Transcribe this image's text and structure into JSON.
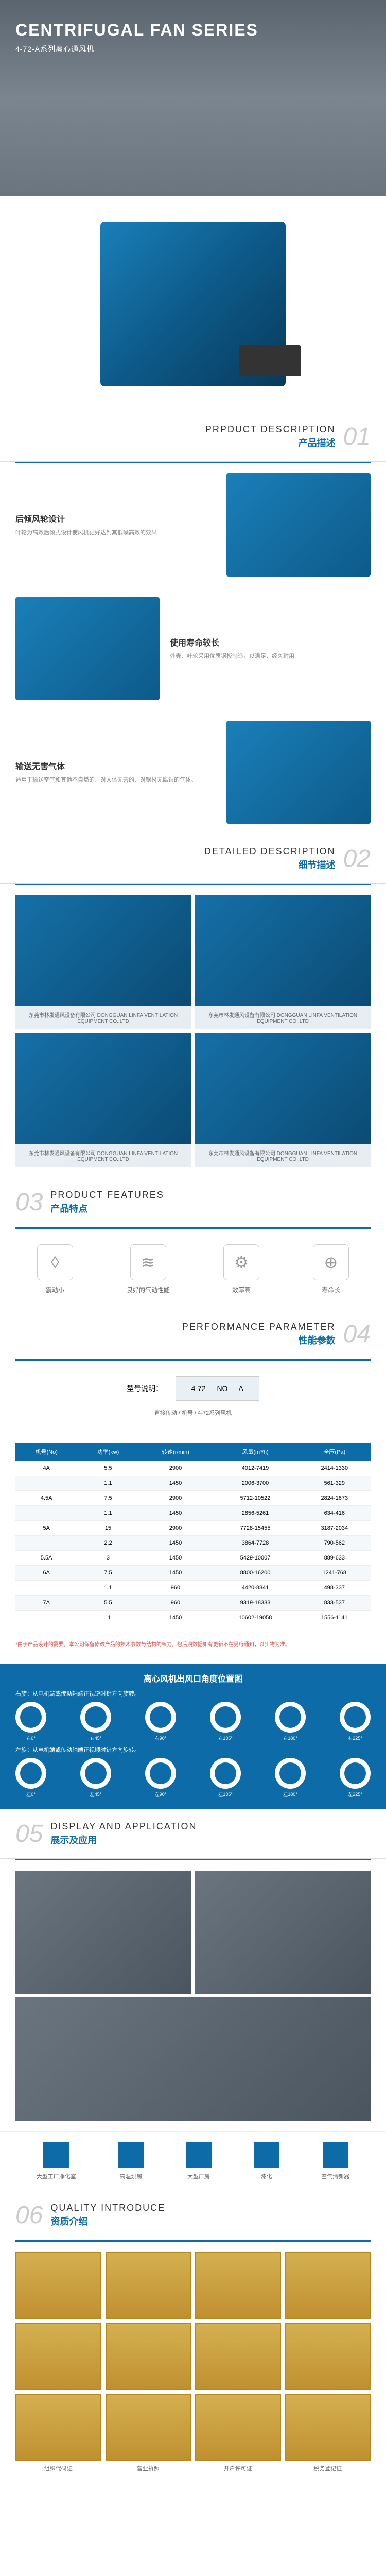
{
  "hero": {
    "title": "CENTRIFUGAL FAN SERIES",
    "subtitle": "4-72-A系列离心通风机"
  },
  "sections": {
    "s01": {
      "num": "01",
      "en": "PRPDUCT DESCRIPTION",
      "cn": "产品描述"
    },
    "s02": {
      "num": "02",
      "en": "DETAILED DESCRIPTION",
      "cn": "细节描述"
    },
    "s03": {
      "num": "03",
      "en": "PRODUCT FEATURES",
      "cn": "产品特点"
    },
    "s04": {
      "num": "04",
      "en": "PERFORMANCE PARAMETER",
      "cn": "性能参数"
    },
    "s05": {
      "num": "05",
      "en": "DISPLAY AND APPLICATION",
      "cn": "展示及应用"
    },
    "s06": {
      "num": "06",
      "en": "QUALITY INTRODUCE",
      "cn": "资质介绍"
    }
  },
  "descriptions": [
    {
      "title": "后倾风轮设计",
      "text": "叶轮为高效后倾式设计使风机更好达到其低噪高效的效果"
    },
    {
      "title": "使用寿命较长",
      "text": "外壳、叶轮采用优质钢板制造，以满足、经久耐用"
    },
    {
      "title": "输送无害气体",
      "text": "适用于输送空气和其他不自燃的、对人体无害的、对钢材无腐蚀的气体。"
    }
  ],
  "detail_watermark": "东莞市林发通风设备有限公司 DONGGUAN LINFA VENTILATION EQUIPMENT CO.,LTD",
  "features": [
    {
      "icon": "◊",
      "label": "震动小"
    },
    {
      "icon": "≋",
      "label": "良好的气动性能"
    },
    {
      "icon": "⚙",
      "label": "效率高"
    },
    {
      "icon": "⊕",
      "label": "寿命长"
    }
  ],
  "param_label": {
    "title": "型号说明：",
    "formula": "4-72 — NO — A",
    "notes": [
      "直接传动",
      "机号",
      "4-72系列风机"
    ]
  },
  "spec_headers": [
    "机号(No)",
    "功率(kw)",
    "转速(r/min)",
    "风量(m³/h)",
    "全压(Pa)"
  ],
  "spec_rows": [
    [
      "4A",
      "5.5",
      "2900",
      "4012-7419",
      "2414-1330"
    ],
    [
      "",
      "1.1",
      "1450",
      "2006-3700",
      "561-329"
    ],
    [
      "4.5A",
      "7.5",
      "2900",
      "5712-10522",
      "2824-1673"
    ],
    [
      "",
      "1.1",
      "1450",
      "2856-5261",
      "634-416"
    ],
    [
      "5A",
      "15",
      "2900",
      "7728-15455",
      "3187-2034"
    ],
    [
      "",
      "2.2",
      "1450",
      "3864-7728",
      "790-562"
    ],
    [
      "5.5A",
      "3",
      "1450",
      "5429-10007",
      "889-633"
    ],
    [
      "6A",
      "7.5",
      "1450",
      "8800-16200",
      "1241-768"
    ],
    [
      "",
      "1.1",
      "960",
      "4420-8841",
      "498-337"
    ],
    [
      "7A",
      "5.5",
      "960",
      "9319-18333",
      "833-537"
    ],
    [
      "",
      "11",
      "1450",
      "10602-19058",
      "1556-1141"
    ]
  ],
  "spec_note": "*由于产品设计的需要，本公司保留修改产品的技术参数与结构的权力，恕后期数据如有更新不在另行通知，以实物为准。",
  "angle": {
    "title": "离心风机出风口角度位置图",
    "sub1": "右旋：从电机端或传动轴端正视逆时针方向旋转。",
    "sub2": "左旋：从电机端或传动轴端正视顺时针方向旋转。",
    "right_labels": [
      "右0°",
      "右45°",
      "右90°",
      "右135°",
      "右180°",
      "右225°"
    ],
    "left_labels": [
      "左0°",
      "左45°",
      "左90°",
      "左135°",
      "左180°",
      "左225°"
    ]
  },
  "apps": [
    {
      "label": "大型工厂净化室"
    },
    {
      "label": "高温烘房"
    },
    {
      "label": "大型厂房"
    },
    {
      "label": "漆化"
    },
    {
      "label": "空气清新器"
    }
  ],
  "cert_labels": [
    "组织代码证",
    "营业执照",
    "开户许可证",
    "税务登记证"
  ],
  "colors": {
    "primary": "#0d6ca8",
    "accent": "#1a7fb8"
  }
}
